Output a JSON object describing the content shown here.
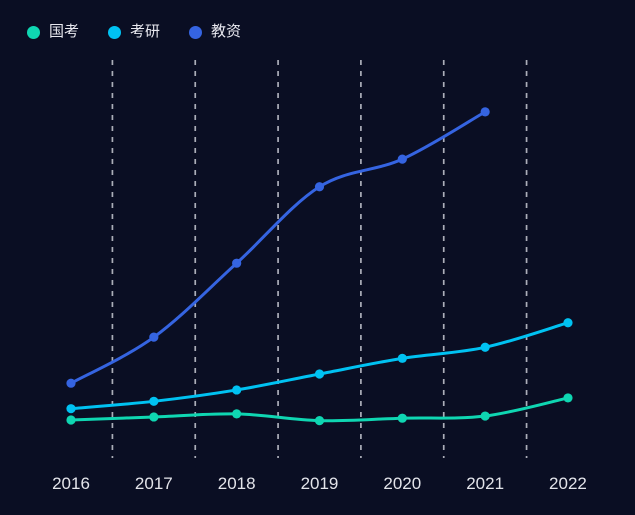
{
  "colors": {
    "background": "#0a0e23",
    "gridline": "#c9cbd4",
    "axis_text": "#e3e4ea",
    "legend_text": "#e8e8ef"
  },
  "chart_data": {
    "type": "line",
    "title": "",
    "xlabel": "",
    "ylabel": "",
    "categories": [
      "2016",
      "2017",
      "2018",
      "2019",
      "2020",
      "2021",
      "2022"
    ],
    "series": [
      {
        "name": "国考",
        "color": "#0fd6b2",
        "values": [
          140,
          150,
          160,
          138,
          146,
          153,
          212
        ]
      },
      {
        "name": "考研",
        "color": "#00c2f2",
        "values": [
          177,
          201,
          238,
          290,
          341,
          377,
          457
        ]
      },
      {
        "name": "教资",
        "color": "#3564e1",
        "values": [
          260,
          410,
          651,
          900,
          990,
          1144,
          null
        ]
      }
    ],
    "ylim": [
      0,
      1313
    ],
    "y_axis_visible": false,
    "grid": "vertical-dashed",
    "smooth": true,
    "legend_position": "top-left",
    "legend": [
      {
        "label": "国考"
      },
      {
        "label": "考研"
      },
      {
        "label": "教资"
      }
    ]
  }
}
